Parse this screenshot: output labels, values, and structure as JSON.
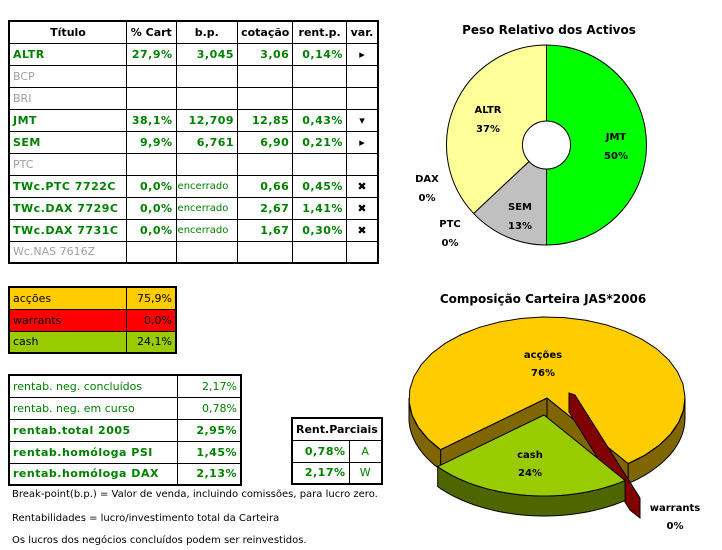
{
  "holdings": {
    "headers": [
      "Título",
      "% Cart",
      "b.p.",
      "cotação",
      "rent.p.",
      "var."
    ],
    "rows": [
      {
        "titulo": "ALTR",
        "cart": "27,9%",
        "bp": "3,045",
        "cotacao": "3,06",
        "rent": "0,14%",
        "var": "▸",
        "active": true
      },
      {
        "titulo": "BCP",
        "cart": "",
        "bp": "",
        "cotacao": "",
        "rent": "",
        "var": "",
        "active": false
      },
      {
        "titulo": "BRI",
        "cart": "",
        "bp": "",
        "cotacao": "",
        "rent": "",
        "var": "",
        "active": false
      },
      {
        "titulo": "JMT",
        "cart": "38,1%",
        "bp": "12,709",
        "cotacao": "12,85",
        "rent": "0,43%",
        "var": "▾",
        "active": true
      },
      {
        "titulo": "SEM",
        "cart": "9,9%",
        "bp": "6,761",
        "cotacao": "6,90",
        "rent": "0,21%",
        "var": "▸",
        "active": true
      },
      {
        "titulo": "PTC",
        "cart": "",
        "bp": "",
        "cotacao": "",
        "rent": "",
        "var": "",
        "active": false
      },
      {
        "titulo": "TWc.PTC 7722C",
        "cart": "0,0%",
        "bp": "encerrado",
        "cotacao": "0,66",
        "rent": "0,45%",
        "var": "✖",
        "active": true
      },
      {
        "titulo": "TWc.DAX 7729C",
        "cart": "0,0%",
        "bp": "encerrado",
        "cotacao": "2,67",
        "rent": "1,41%",
        "var": "✖",
        "active": true
      },
      {
        "titulo": "TWc.DAX 7731C",
        "cart": "0,0%",
        "bp": "encerrado",
        "cotacao": "1,67",
        "rent": "0,30%",
        "var": "✖",
        "active": true
      },
      {
        "titulo": "Wc.NAS 7616Z",
        "cart": "",
        "bp": "",
        "cotacao": "",
        "rent": "",
        "var": "",
        "active": false
      }
    ]
  },
  "allocation": [
    {
      "label": "acções",
      "value": "75,9%",
      "color": "#ffcc00"
    },
    {
      "label": "warrants",
      "value": "0,0%",
      "color": "#ff0000"
    },
    {
      "label": "cash",
      "value": "24,1%",
      "color": "#99cc00"
    }
  ],
  "returns": [
    {
      "label": "rentab. neg. concluídos",
      "value": "2,17%",
      "bold": false
    },
    {
      "label": "rentab. neg. em curso",
      "value": "0,78%",
      "bold": false
    },
    {
      "label": "rentab.total 2005",
      "value": "2,95%",
      "bold": true
    },
    {
      "label": "rentab.homóloga PSI",
      "value": "1,45%",
      "bold": true
    },
    {
      "label": "rentab.homóloga DAX",
      "value": "2,13%",
      "bold": true
    }
  ],
  "partial": {
    "header": "Rent.Parciais",
    "rows": [
      {
        "value": "0,78%",
        "tag": "A"
      },
      {
        "value": "2,17%",
        "tag": "W"
      }
    ]
  },
  "notes": [
    "Break-point(b.p.) = Valor de venda, incluindo comissões, para lucro zero.",
    "Rentabilidades = lucro/investimento total da Carteira",
    "Os lucros dos negócios concluídos podem ser reinvestidos."
  ],
  "chart_data": [
    {
      "type": "pie",
      "variant": "doughnut",
      "title": "Peso Relativo dos Activos",
      "categories": [
        "JMT",
        "SEM",
        "PTC",
        "DAX",
        "ALTR"
      ],
      "values": [
        50,
        13,
        0,
        0,
        37
      ],
      "labels": [
        "50%",
        "13%",
        "0%",
        "0%",
        "37%"
      ],
      "colors": [
        "#00ff00",
        "#c0c0c0",
        "#c0c0c0",
        "#c0c0c0",
        "#ffff99"
      ]
    },
    {
      "type": "pie",
      "variant": "3d-exploded",
      "title": "Composição Carteira JAS*2006",
      "categories": [
        "acções",
        "warrants",
        "cash"
      ],
      "values": [
        76,
        0,
        24
      ],
      "labels": [
        "76%",
        "0%",
        "24%"
      ],
      "colors": [
        "#ffcc00",
        "#800000",
        "#99cc00"
      ]
    }
  ]
}
